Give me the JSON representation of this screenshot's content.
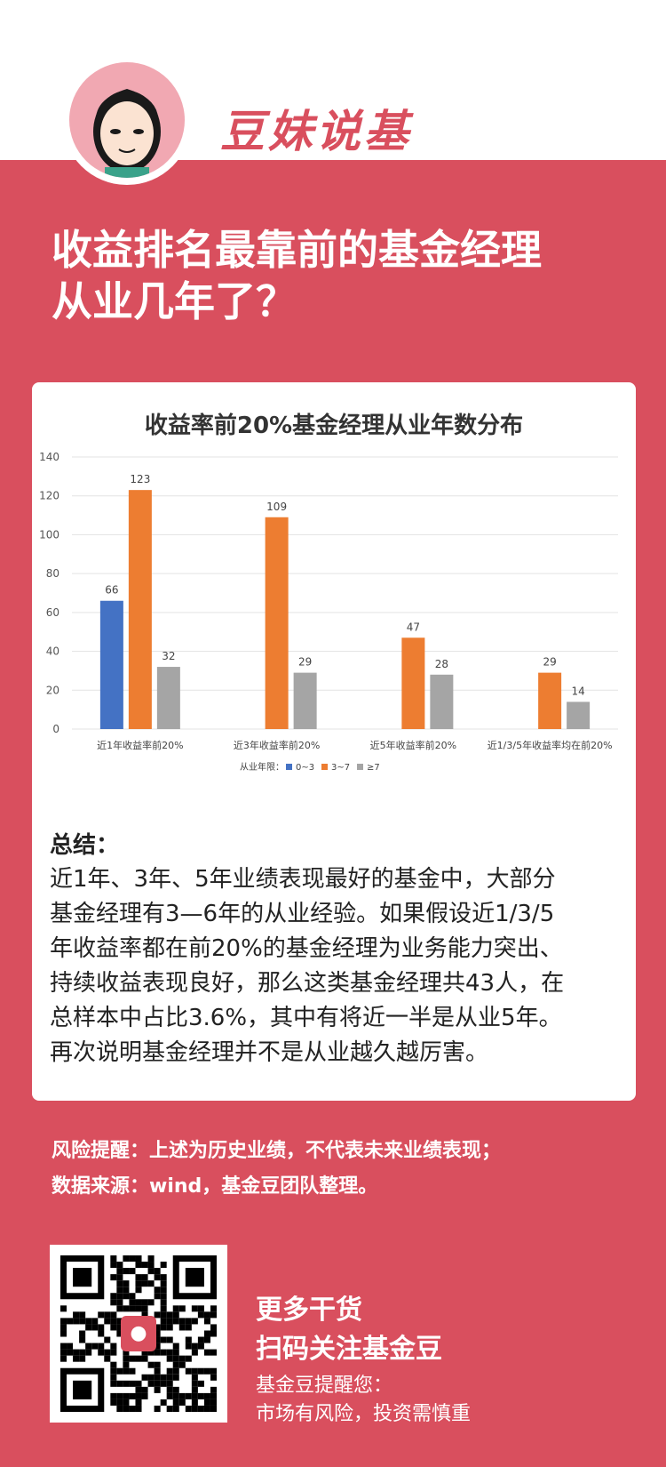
{
  "brand": {
    "name": "豆妹说基"
  },
  "headline": {
    "line1": "收益排名最靠前的基金经理",
    "line2": "从业几年了？"
  },
  "chart_data": {
    "type": "bar",
    "title": "收益率前20%基金经理从业年数分布",
    "categories": [
      "近1年收益率前20%",
      "近3年收益率前20%",
      "近5年收益率前20%",
      "近1/3/5年收益率均在前20%"
    ],
    "series": [
      {
        "name": "0~3",
        "color": "#4472c4",
        "values": [
          66,
          null,
          null,
          null
        ]
      },
      {
        "name": "3~7",
        "color": "#ed7d31",
        "values": [
          123,
          109,
          47,
          29
        ]
      },
      {
        "name": "≥7",
        "color": "#a5a5a5",
        "values": [
          32,
          29,
          28,
          14
        ]
      }
    ],
    "ylim": [
      0,
      140
    ],
    "yticks": [
      0,
      20,
      40,
      60,
      80,
      100,
      120,
      140
    ],
    "legend_title": "从业年限：",
    "legend_position": "bottom",
    "grid": true
  },
  "summary": {
    "heading": "总结：",
    "lines": [
      "近1年、3年、5年业绩表现最好的基金中，大部分",
      "基金经理有3—6年的从业经验。如果假设近1/3/5",
      "年收益率都在前20%的基金经理为业务能力突出、",
      "持续收益表现良好，那么这类基金经理共43人，在",
      "总样本中占比3.6%，其中有将近一半是从业5年。",
      "再次说明基金经理并不是从业越久越厉害。"
    ]
  },
  "notes": {
    "risk": "风险提醒：上述为历史业绩，不代表未来业绩表现；",
    "source": "数据来源：wind，基金豆团队整理。"
  },
  "cta": {
    "line1": "更多干货",
    "line2": "扫码关注基金豆",
    "line3": "基金豆提醒您：",
    "line4": "市场有风险，投资需慎重"
  },
  "colors": {
    "accent": "#d94f5e",
    "card": "#ffffff"
  },
  "icons": {
    "avatar": "cartoon-girl-avatar",
    "qr": "qr-code",
    "qr_logo": "bean-logo"
  }
}
